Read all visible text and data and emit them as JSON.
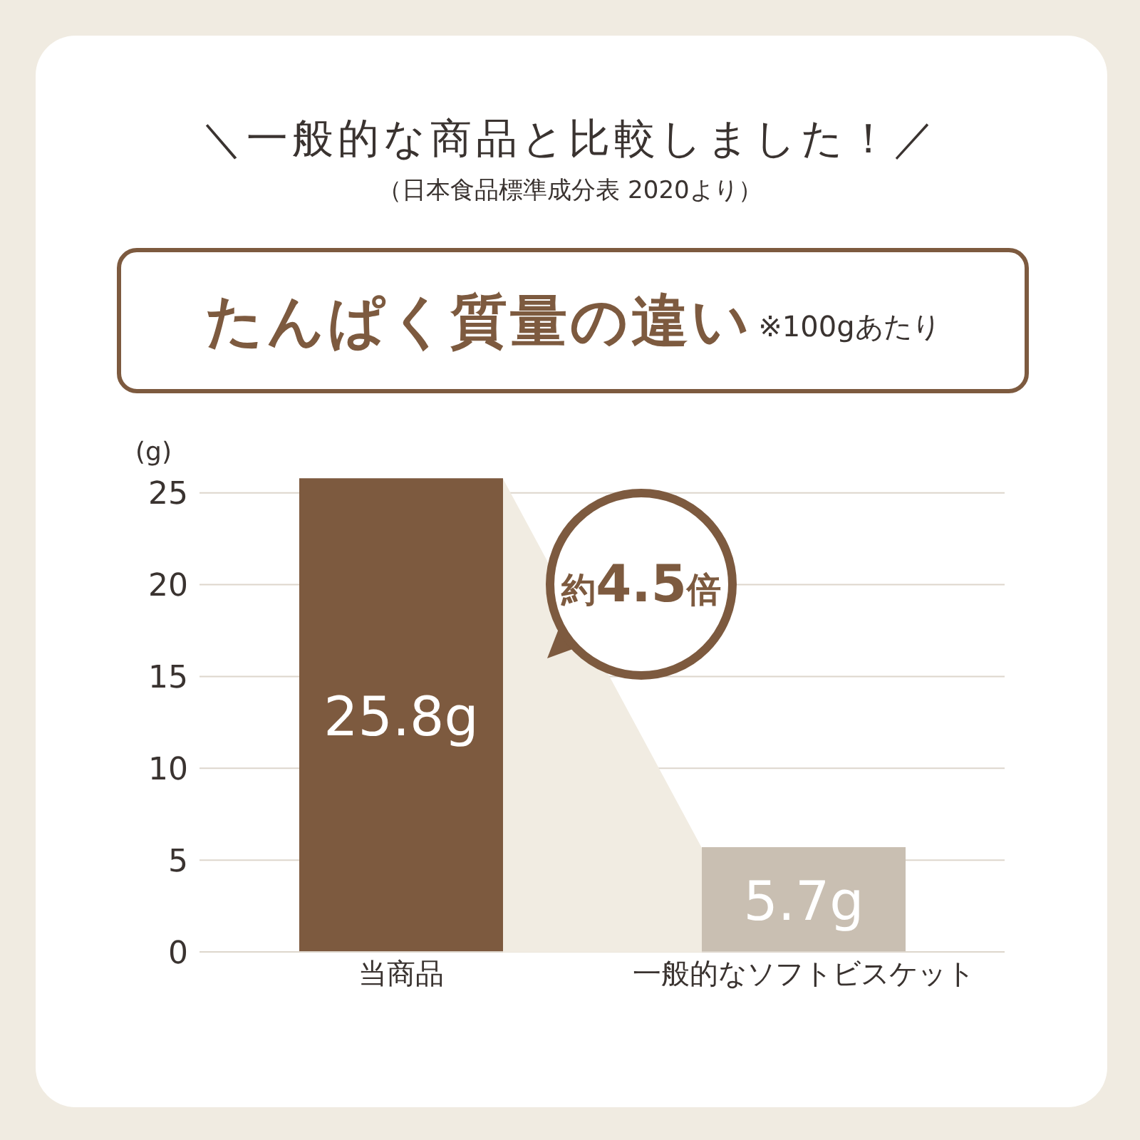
{
  "chart_data": {
    "type": "bar",
    "title": "＼一般的な商品と比較しました！／",
    "subtitle": "（日本食品標準成分表 2020より）",
    "ylabel": "(g)",
    "annotations": [
      "たんぱく質量の違い",
      "※100gあたり",
      "約4.5倍"
    ],
    "categories": [
      "当商品",
      "一般的なソフトビスケット"
    ],
    "values": [
      25.8,
      5.7
    ],
    "colors": [
      "#7d5a3f",
      "#c9bfb2"
    ],
    "value_labels": [
      "25.8g",
      "5.7g"
    ],
    "ylim": [
      0,
      26
    ],
    "yticks": [
      0,
      5,
      10,
      15,
      20,
      25
    ],
    "grid": "y"
  }
}
